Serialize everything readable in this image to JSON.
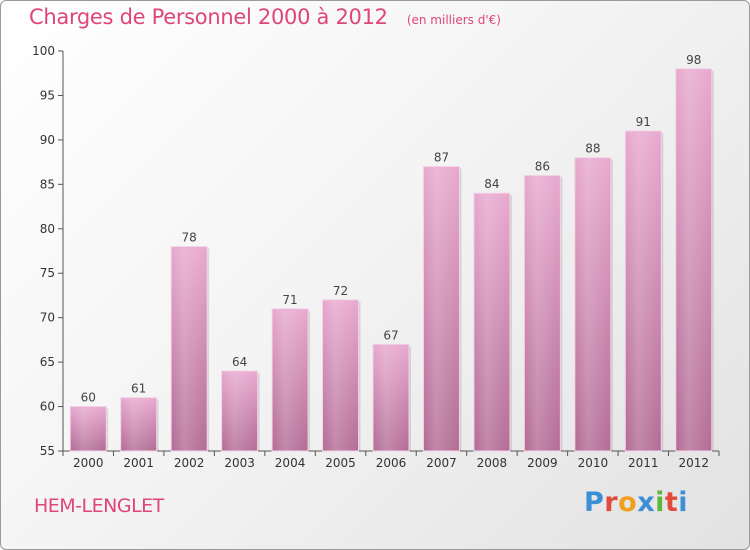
{
  "chart_data": {
    "type": "bar",
    "title": "Charges de Personnel 2000 à 2012",
    "subtitle": "(en milliers d'€)",
    "categories": [
      "2000",
      "2001",
      "2002",
      "2003",
      "2004",
      "2005",
      "2006",
      "2007",
      "2008",
      "2009",
      "2010",
      "2011",
      "2012"
    ],
    "values": [
      60,
      61,
      78,
      64,
      71,
      72,
      67,
      87,
      84,
      86,
      88,
      91,
      98
    ],
    "ylim": [
      55,
      100
    ],
    "yticks": [
      55,
      60,
      65,
      70,
      75,
      80,
      85,
      90,
      95,
      100
    ],
    "grid": false,
    "data_labels": true,
    "bar_color": "#d98ab6",
    "xlabel": "",
    "ylabel": ""
  },
  "footer": {
    "commune": "HEM-LENGLET"
  },
  "logo": {
    "text": "Proxiti",
    "colors": [
      "#3a8fd6",
      "#e24a3b",
      "#f0a020",
      "#3a8fd6",
      "#5ab83a",
      "#e24a3b",
      "#3a8fd6"
    ]
  }
}
